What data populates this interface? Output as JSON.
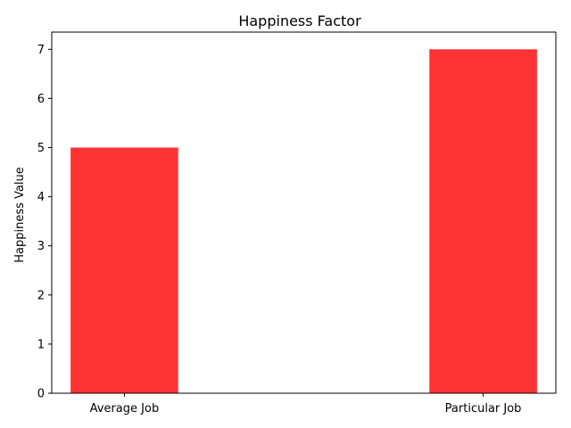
{
  "chart_data": {
    "type": "bar",
    "title": "Happiness Factor",
    "xlabel": "",
    "ylabel": "Happiness Value",
    "categories": [
      "Average Job",
      "Particular Job"
    ],
    "values": [
      5,
      7
    ],
    "ylim": [
      0,
      7.35
    ],
    "yticks": [
      0,
      1,
      2,
      3,
      4,
      5,
      6,
      7
    ],
    "bar_color": "#ff3333",
    "grid": false,
    "legend": "none"
  }
}
